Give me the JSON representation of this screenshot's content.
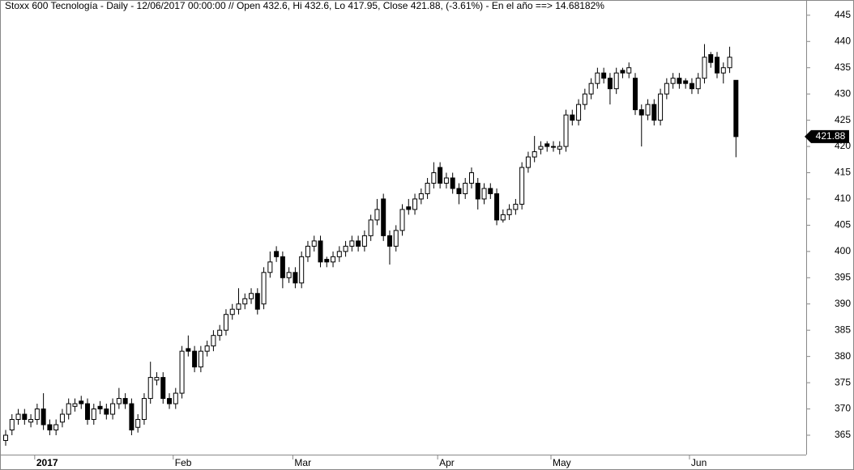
{
  "chart_data": {
    "type": "candlestick",
    "title": "Stoxx 600 Tecnología - Daily - 12/06/2017 00:00:00 // Open 432.6, Hi 432.6, Lo 417.95, Close 421.88, (-3.61%) - En el año ==> 14.68182%",
    "categories": [
      null,
      null,
      null,
      null,
      null,
      "2017",
      null,
      null,
      null,
      null,
      null,
      null,
      null,
      null,
      null,
      null,
      null,
      null,
      null,
      null,
      null,
      null,
      null,
      null,
      null,
      null,
      null,
      "Feb",
      null,
      null,
      null,
      null,
      null,
      null,
      null,
      null,
      null,
      null,
      null,
      null,
      null,
      null,
      null,
      null,
      null,
      null,
      "Mar",
      null,
      null,
      null,
      null,
      null,
      null,
      null,
      null,
      null,
      null,
      null,
      null,
      null,
      null,
      null,
      null,
      null,
      null,
      null,
      null,
      null,
      null,
      "Apr",
      null,
      null,
      null,
      null,
      null,
      null,
      null,
      null,
      null,
      null,
      null,
      null,
      null,
      null,
      null,
      null,
      null,
      "May",
      null,
      null,
      null,
      null,
      null,
      null,
      null,
      null,
      null,
      null,
      null,
      null,
      null,
      null,
      null,
      null,
      null,
      null,
      null,
      null,
      null,
      "Jun",
      null,
      null,
      null,
      null,
      null,
      null,
      null
    ],
    "open": [
      364,
      366,
      368,
      369,
      367.5,
      368,
      370,
      367,
      366,
      367.5,
      369,
      370.5,
      371.5,
      371,
      368,
      370.5,
      370,
      369,
      371,
      372,
      371,
      366.5,
      368,
      372,
      375.5,
      376,
      372,
      371,
      373,
      381.5,
      381,
      378,
      381,
      382,
      384,
      385,
      388,
      389,
      390,
      391,
      392,
      390,
      396,
      400,
      399,
      395,
      396,
      394,
      399,
      401,
      402,
      398.5,
      398,
      399,
      400,
      401,
      402,
      401,
      403,
      406,
      410,
      403,
      401,
      404,
      408.5,
      408,
      410,
      411,
      413,
      416,
      413,
      414,
      412,
      411,
      413,
      413,
      410,
      412,
      411,
      406,
      407,
      408,
      409,
      416,
      418,
      419.5,
      420.5,
      420,
      419.5,
      420,
      426,
      425,
      428,
      430,
      432,
      434,
      433,
      431,
      434.5,
      434,
      433,
      427,
      426,
      428,
      425,
      430,
      432,
      433,
      432.5,
      432,
      431,
      433,
      437.5,
      437,
      434,
      435,
      432.6
    ],
    "high": [
      366,
      369,
      370,
      370,
      369,
      371,
      373,
      368,
      368,
      370,
      372,
      372,
      372.5,
      372,
      371,
      371.5,
      371,
      372,
      374,
      373,
      372,
      369,
      373,
      379,
      377,
      377,
      373,
      374,
      382,
      384,
      382,
      382,
      383,
      385,
      386,
      389,
      390,
      393,
      392,
      393,
      393,
      397,
      400,
      401,
      400,
      397,
      397,
      400,
      402,
      403,
      403,
      399,
      400,
      401,
      402,
      403,
      403,
      404,
      407,
      410,
      411,
      404,
      405,
      409,
      410,
      411,
      412,
      414,
      417,
      417,
      415,
      415,
      413,
      414,
      416,
      414,
      413,
      413,
      412,
      408,
      409,
      410,
      417,
      419,
      422,
      421,
      421,
      421,
      421,
      427,
      427,
      429,
      431,
      433,
      435,
      435,
      434,
      435,
      435,
      436,
      434,
      428,
      429,
      429,
      431,
      433,
      434,
      434,
      433,
      433,
      434,
      439.5,
      438,
      438,
      436,
      439,
      432.6
    ],
    "low": [
      363,
      365,
      367,
      367,
      366.5,
      367,
      366,
      365,
      365,
      366.5,
      368,
      369.5,
      370,
      367,
      367,
      369,
      368,
      368,
      370,
      370,
      365,
      365.5,
      367,
      371,
      374.5,
      371,
      370,
      370,
      372,
      380,
      377,
      377,
      380,
      381,
      383,
      384,
      387,
      388,
      389,
      390,
      388,
      389,
      395,
      398,
      393,
      394,
      393,
      393,
      398,
      400,
      397,
      397,
      397,
      398,
      399,
      400,
      400,
      400,
      402,
      405,
      402,
      397.5,
      400,
      403,
      407,
      407,
      409,
      410,
      412,
      412,
      412,
      411,
      409,
      410,
      412,
      408,
      409,
      410,
      405,
      405.5,
      406,
      407,
      408,
      415,
      417,
      418.5,
      419,
      419,
      418.5,
      419,
      424,
      424,
      427,
      429,
      431,
      432,
      428,
      430,
      433,
      433,
      426,
      420,
      425,
      424,
      424,
      429,
      431,
      431,
      431,
      430,
      430,
      432,
      435,
      433,
      432,
      434,
      417.95
    ],
    "close": [
      365,
      368,
      369,
      368,
      368,
      370,
      367,
      366,
      367,
      369,
      371,
      371,
      371,
      368,
      370,
      370,
      369,
      371,
      372,
      371,
      366,
      368,
      372,
      376,
      376,
      372,
      371,
      373,
      381,
      381,
      378,
      381,
      382,
      384,
      385,
      388,
      389,
      390,
      391,
      392,
      389,
      396,
      398,
      399,
      395,
      396,
      394,
      399,
      401,
      402,
      398,
      398,
      399,
      400,
      401,
      402,
      401,
      403,
      406,
      408,
      403,
      401,
      404,
      408,
      408,
      410,
      411,
      413,
      415,
      413,
      414,
      412,
      411,
      413,
      415,
      410,
      412,
      411,
      406,
      407,
      408,
      409,
      416,
      418,
      419,
      420,
      420,
      420,
      420,
      426,
      425,
      428,
      430,
      432,
      434,
      433,
      431,
      434,
      434,
      435,
      427,
      426,
      428,
      425,
      430,
      432,
      433,
      432,
      432,
      431,
      433,
      437,
      436,
      434,
      435,
      437,
      421.88
    ],
    "up_color": "#ffffff",
    "down_color": "#000000",
    "ylim": [
      361.3,
      447.9
    ],
    "yticks": [
      365,
      370,
      375,
      380,
      385,
      390,
      395,
      400,
      405,
      410,
      415,
      420,
      425,
      430,
      435,
      440,
      445
    ],
    "grid": false
  }
}
